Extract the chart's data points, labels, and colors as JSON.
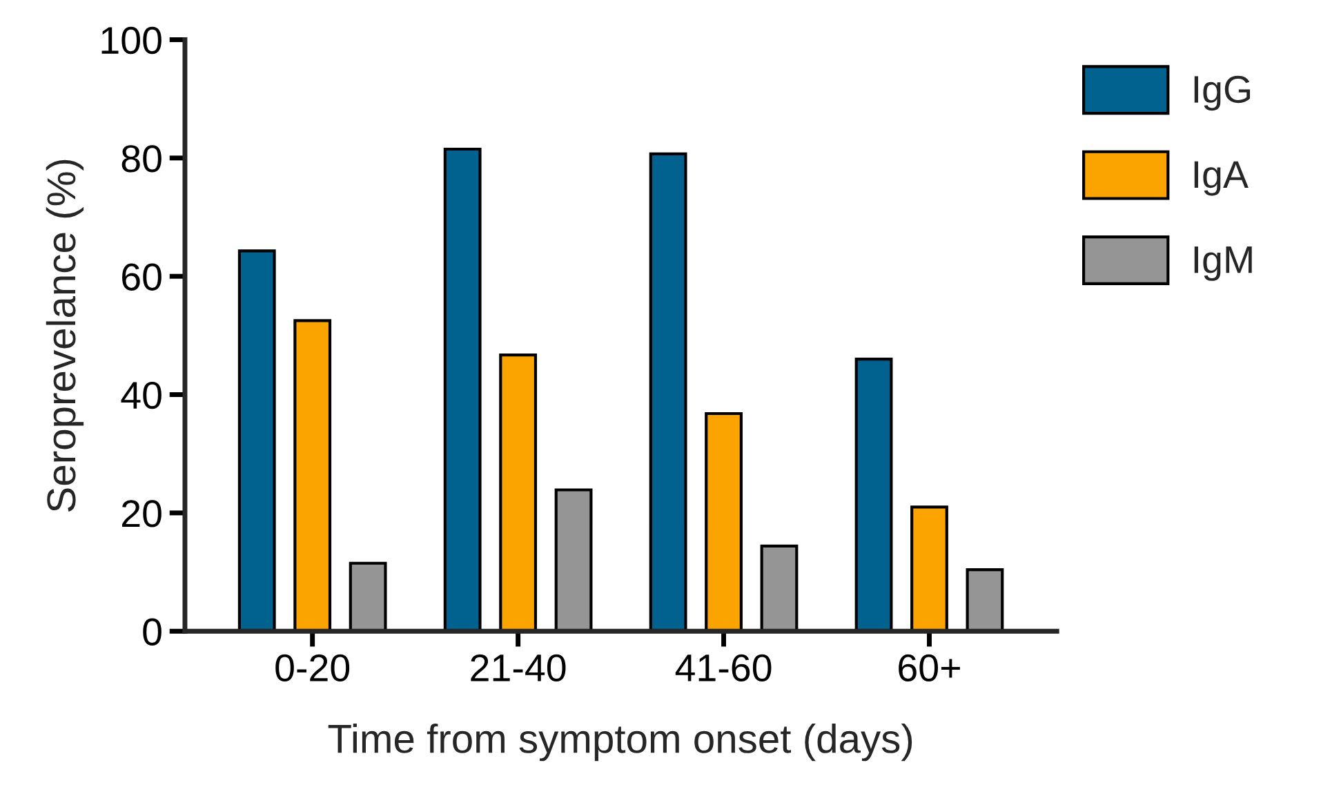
{
  "chart_data": {
    "type": "bar",
    "xlabel": "Time from symptom onset (days)",
    "ylabel": "Seroprevelance (%)",
    "categories": [
      "0-20",
      "21-40",
      "41-60",
      "60+"
    ],
    "series": [
      {
        "name": "IgG",
        "color": "#01628f",
        "values": [
          64.3,
          81.5,
          80.7,
          46.0
        ]
      },
      {
        "name": "IgA",
        "color": "#fba400",
        "values": [
          52.5,
          46.7,
          36.8,
          21.0
        ]
      },
      {
        "name": "IgM",
        "color": "#959595",
        "values": [
          11.5,
          23.9,
          14.4,
          10.4
        ]
      }
    ],
    "ylim": [
      0,
      100
    ],
    "yticks": [
      0,
      20,
      40,
      60,
      80,
      100
    ],
    "grid": false,
    "legend": "right"
  }
}
